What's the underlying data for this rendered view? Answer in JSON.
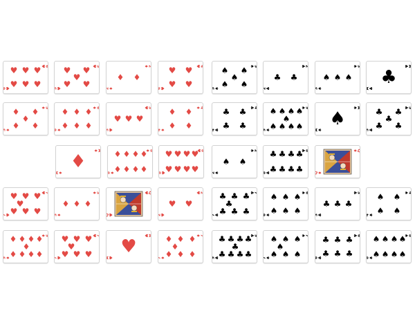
{
  "colors": {
    "red": "#e34a45",
    "black": "#000000"
  },
  "suits": {
    "hearts": "♥",
    "diamonds": "♦",
    "spades": "♠",
    "clubs": "♣"
  },
  "tableau": [
    {
      "row": 1,
      "cards": [
        {
          "rank": "6",
          "suit": "hearts"
        },
        {
          "rank": "5",
          "suit": "hearts"
        },
        {
          "rank": "2",
          "suit": "diamonds"
        },
        {
          "rank": "4",
          "suit": "hearts"
        },
        {
          "rank": "5",
          "suit": "spades"
        },
        {
          "rank": "2",
          "suit": "clubs"
        },
        {
          "rank": "3",
          "suit": "spades"
        },
        {
          "rank": "A",
          "suit": "clubs"
        }
      ]
    },
    {
      "row": 2,
      "cards": [
        {
          "rank": "5",
          "suit": "diamonds"
        },
        {
          "rank": "6",
          "suit": "diamonds"
        },
        {
          "rank": "3",
          "suit": "hearts"
        },
        {
          "rank": "4",
          "suit": "diamonds"
        },
        {
          "rank": "4",
          "suit": "clubs"
        },
        {
          "rank": "9",
          "suit": "spades"
        },
        {
          "rank": "A",
          "suit": "spades"
        },
        {
          "rank": "5",
          "suit": "clubs"
        }
      ]
    },
    {
      "row": 3,
      "cards": [
        {
          "rank": "A",
          "suit": "diamonds"
        },
        {
          "rank": "8",
          "suit": "diamonds"
        },
        {
          "rank": "8",
          "suit": "hearts"
        },
        {
          "rank": "2",
          "suit": "spades"
        },
        {
          "rank": "8",
          "suit": "clubs"
        },
        {
          "rank": "Q",
          "suit": "diamonds"
        }
      ]
    },
    {
      "row": 4,
      "cards": [
        {
          "rank": "7",
          "suit": "hearts"
        },
        {
          "rank": "3",
          "suit": "diamonds"
        },
        {
          "rank": "Q",
          "suit": "hearts"
        },
        {
          "rank": "2",
          "suit": "hearts"
        },
        {
          "rank": "7",
          "suit": "clubs"
        },
        {
          "rank": "6",
          "suit": "spades"
        },
        {
          "rank": "3",
          "suit": "clubs"
        },
        {
          "rank": "4",
          "suit": "spades"
        }
      ]
    },
    {
      "row": 5,
      "cards": [
        {
          "rank": "9",
          "suit": "diamonds"
        },
        {
          "rank": "7",
          "suit": "hearts"
        },
        {
          "rank": "A",
          "suit": "hearts"
        },
        {
          "rank": "7",
          "suit": "diamonds"
        },
        {
          "rank": "9",
          "suit": "clubs"
        },
        {
          "rank": "7",
          "suit": "spades"
        },
        {
          "rank": "6",
          "suit": "clubs"
        },
        {
          "rank": "8",
          "suit": "spades"
        }
      ]
    }
  ]
}
